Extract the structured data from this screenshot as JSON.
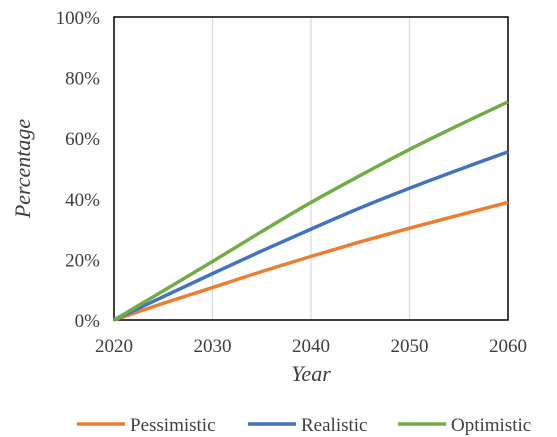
{
  "chart_data": {
    "type": "line",
    "title": "",
    "xlabel": "Year",
    "ylabel": "Percentage",
    "xlim": [
      2020,
      2060
    ],
    "ylim": [
      0,
      100
    ],
    "x_ticks": [
      "2020",
      "2030",
      "2040",
      "2050",
      "2060"
    ],
    "y_ticks": [
      "0%",
      "20%",
      "40%",
      "60%",
      "80%",
      "100%"
    ],
    "grid": "vertical",
    "legend_position": "bottom",
    "x": [
      2020,
      2025,
      2030,
      2035,
      2040,
      2045,
      2050,
      2055,
      2060
    ],
    "series": [
      {
        "name": "Pessimistic",
        "color": "#ED7D31",
        "values": [
          0,
          5.5,
          10.7,
          16.0,
          21.0,
          25.8,
          30.3,
          34.6,
          38.8
        ]
      },
      {
        "name": "Realistic",
        "color": "#4472C4",
        "values": [
          0,
          7.7,
          15.3,
          22.8,
          30.0,
          37.0,
          43.5,
          49.6,
          55.5
        ]
      },
      {
        "name": "Optimistic",
        "color": "#70AD47",
        "values": [
          0,
          9.6,
          19.3,
          29.2,
          38.8,
          47.7,
          56.3,
          64.3,
          72.0
        ]
      }
    ]
  }
}
